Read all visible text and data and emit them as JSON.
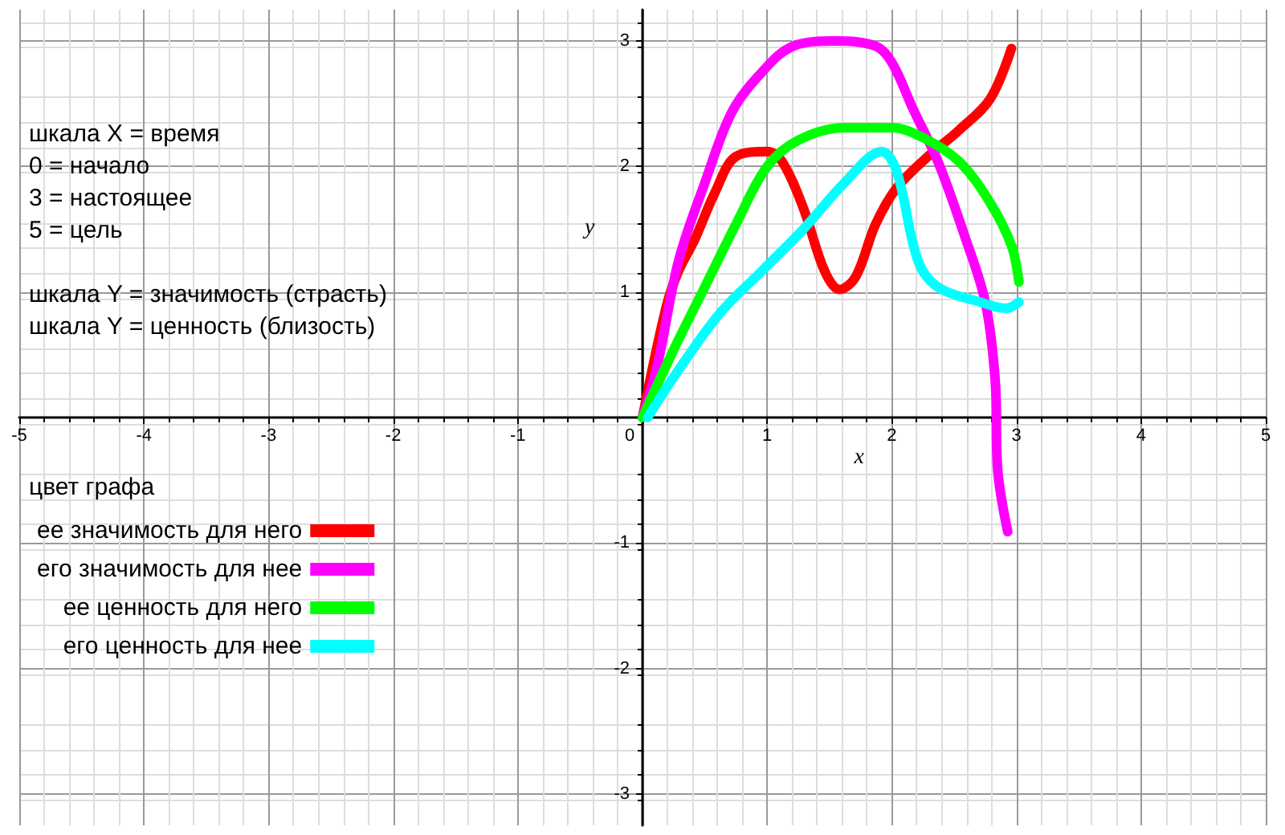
{
  "chart_data": {
    "type": "line",
    "xlabel": "x",
    "ylabel": "y",
    "legend_title": "цвет графа",
    "legend": "left",
    "annotations": [
      "шкала X = время",
      "0 = начало",
      "3 = настоящее",
      "5 = цель",
      "шкала Y = значимость (страсть)",
      "шкала Y = ценность (близость)"
    ],
    "xlim": [
      -5,
      5
    ],
    "ylim": [
      -3.25,
      3.25
    ],
    "xticks": [
      -5,
      -4,
      -3,
      -2,
      -1,
      0,
      1,
      2,
      3,
      4,
      5
    ],
    "yticks": [
      -3,
      -2,
      -1,
      1,
      2,
      3
    ],
    "grid": true,
    "marker": "none",
    "line_style": "solid",
    "series": [
      {
        "name": "ее значимость для него",
        "color": "#ff0000",
        "x": [
          0,
          0.19,
          0.29,
          0.42,
          0.58,
          0.75,
          1.0,
          1.12,
          1.29,
          1.46,
          1.58,
          1.71,
          1.87,
          2.04,
          2.29,
          2.54,
          2.79,
          2.96
        ],
        "values": [
          0,
          0.88,
          1.17,
          1.42,
          1.79,
          2.08,
          2.12,
          2.04,
          1.67,
          1.17,
          1.02,
          1.12,
          1.54,
          1.83,
          2.08,
          2.29,
          2.54,
          2.94
        ]
      },
      {
        "name": "его значимость для нее",
        "color": "#ff00ff",
        "x": [
          0,
          0.12,
          0.29,
          0.5,
          0.71,
          0.92,
          1.21,
          1.54,
          1.87,
          2.0,
          2.17,
          2.37,
          2.58,
          2.75,
          2.83,
          2.85,
          2.93
        ],
        "values": [
          0,
          0.42,
          1.25,
          1.87,
          2.42,
          2.71,
          2.96,
          3.0,
          2.96,
          2.83,
          2.46,
          2.04,
          1.46,
          0.92,
          0.29,
          -0.42,
          -0.91
        ]
      },
      {
        "name": "ее ценность для него",
        "color": "#00ff00",
        "x": [
          0,
          0.25,
          0.5,
          0.75,
          1.0,
          1.25,
          1.62,
          2.0,
          2.25,
          2.54,
          2.79,
          2.96,
          3.02
        ],
        "values": [
          0,
          0.54,
          1.04,
          1.54,
          2.0,
          2.21,
          2.31,
          2.31,
          2.23,
          2.04,
          1.71,
          1.37,
          1.08
        ]
      },
      {
        "name": "его ценность для нее",
        "color": "#00ffff",
        "x": [
          0.04,
          0.29,
          0.62,
          0.96,
          1.29,
          1.62,
          1.92,
          2.04,
          2.21,
          2.37,
          2.71,
          2.92,
          3.02
        ],
        "values": [
          0,
          0.38,
          0.83,
          1.17,
          1.5,
          1.87,
          2.12,
          1.96,
          1.25,
          1.04,
          0.92,
          0.87,
          0.92
        ]
      }
    ]
  }
}
